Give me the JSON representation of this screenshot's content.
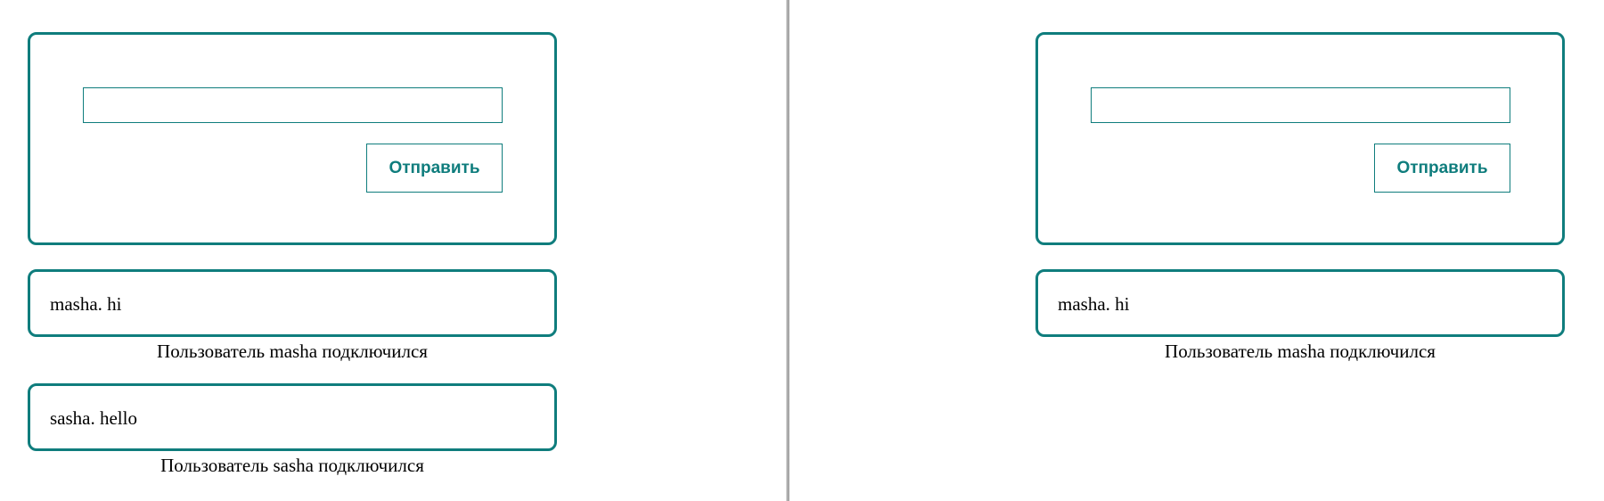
{
  "left": {
    "input_value": "",
    "send_label": "Отправить",
    "messages": [
      {
        "text": "masha. hi",
        "status": "Пользователь masha подключился"
      },
      {
        "text": "sasha. hello",
        "status": "Пользователь sasha подключился"
      }
    ]
  },
  "right": {
    "input_value": "",
    "send_label": "Отправить",
    "messages": [
      {
        "text": "masha. hi",
        "status": "Пользователь masha подключился"
      }
    ]
  },
  "colors": {
    "accent": "#0f7d7d",
    "text": "#000000",
    "background": "#ffffff"
  }
}
